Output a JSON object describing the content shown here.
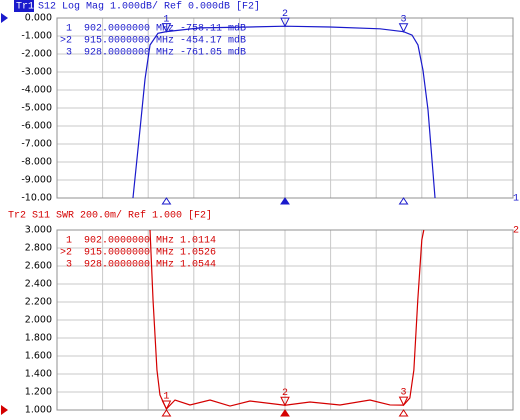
{
  "chart_data": [
    {
      "type": "line",
      "trace_label": "Tr1",
      "title": "S12 Log Mag 1.000dB/ Ref 0.000dB [F2]",
      "trace_number": "1",
      "color": "#1a1acc",
      "xlim": [
        890,
        940
      ],
      "ylim": [
        -10,
        0
      ],
      "yticks": [
        {
          "value": 0,
          "label": "0.000"
        },
        {
          "value": -1,
          "label": "-1.000"
        },
        {
          "value": -2,
          "label": "-2.000"
        },
        {
          "value": -3,
          "label": "-3.000"
        },
        {
          "value": -4,
          "label": "-4.000"
        },
        {
          "value": -5,
          "label": "-5.000"
        },
        {
          "value": -6,
          "label": "-6.000"
        },
        {
          "value": -7,
          "label": "-7.000"
        },
        {
          "value": -8,
          "label": "-8.000"
        },
        {
          "value": -9,
          "label": "-9.000"
        },
        {
          "value": -10,
          "label": "-10.00"
        }
      ],
      "grid": true,
      "series": [
        {
          "x": [
            898.33,
            899.1,
            899.65,
            900.2,
            901.07,
            902,
            905.68,
            911.16,
            915,
            919.93,
            925.42,
            928,
            928.93,
            929.58,
            930.13,
            930.68,
            931.12,
            931.45
          ],
          "values": [
            -10,
            -6.2,
            -3.4,
            -1.5,
            -0.85,
            -0.75811,
            -0.55,
            -0.5,
            -0.45417,
            -0.5,
            -0.6,
            -0.76105,
            -0.95,
            -1.5,
            -2.9,
            -5.1,
            -7.9,
            -10
          ]
        }
      ],
      "markers": [
        {
          "name": "1",
          "table_label": "1",
          "x": 902,
          "value": -0.75811,
          "x_label": "902.0000000 MHz",
          "value_label": "-758.11 mdB",
          "active": false
        },
        {
          "name": "2",
          "table_label": ">2",
          "x": 915,
          "value": -0.45417,
          "x_label": "915.0000000 MHz",
          "value_label": "-454.17 mdB",
          "active": true
        },
        {
          "name": "3",
          "table_label": "3",
          "x": 928,
          "value": -0.76105,
          "x_label": "928.0000000 MHz",
          "value_label": "-761.05 mdB",
          "active": false
        }
      ]
    },
    {
      "type": "line",
      "trace_label": "Tr2",
      "title": "S11 SWR 200.0m/ Ref 1.000 [F2]",
      "trace_number": "2",
      "color": "#d40000",
      "xlim": [
        890,
        940
      ],
      "ylim": [
        1,
        3
      ],
      "yticks": [
        {
          "value": 3,
          "label": "3.000"
        },
        {
          "value": 2.8,
          "label": "2.800"
        },
        {
          "value": 2.6,
          "label": "2.600"
        },
        {
          "value": 2.4,
          "label": "2.400"
        },
        {
          "value": 2.2,
          "label": "2.200"
        },
        {
          "value": 2,
          "label": "2.000"
        },
        {
          "value": 1.8,
          "label": "1.800"
        },
        {
          "value": 1.6,
          "label": "1.600"
        },
        {
          "value": 1.4,
          "label": "1.400"
        },
        {
          "value": 1.2,
          "label": "1.200"
        },
        {
          "value": 1,
          "label": "1.000"
        }
      ],
      "grid": true,
      "series": [
        {
          "x": [
            900.2,
            900.53,
            900.96,
            901.29,
            902,
            902.94,
            904.58,
            906.78,
            908.97,
            911.16,
            915,
            917.74,
            921.03,
            924.32,
            926.51,
            928,
            928.69,
            929.13,
            929.56,
            930,
            930.22
          ],
          "values": [
            3,
            2.222,
            1.444,
            1.167,
            1.0114,
            1.111,
            1.056,
            1.111,
            1.044,
            1.1,
            1.0526,
            1.089,
            1.056,
            1.111,
            1.056,
            1.0544,
            1.133,
            1.444,
            2.222,
            2.889,
            3
          ]
        }
      ],
      "markers": [
        {
          "name": "1",
          "table_label": "1",
          "x": 902,
          "value": 1.0114,
          "x_label": "902.0000000 MHz",
          "value_label": "1.0114",
          "active": false
        },
        {
          "name": "2",
          "table_label": ">2",
          "x": 915,
          "value": 1.0526,
          "x_label": "915.0000000 MHz",
          "value_label": "1.0526",
          "active": true
        },
        {
          "name": "3",
          "table_label": "3",
          "x": 928,
          "value": 1.0544,
          "x_label": "928.0000000 MHz",
          "value_label": "1.0544",
          "active": false
        }
      ]
    }
  ]
}
